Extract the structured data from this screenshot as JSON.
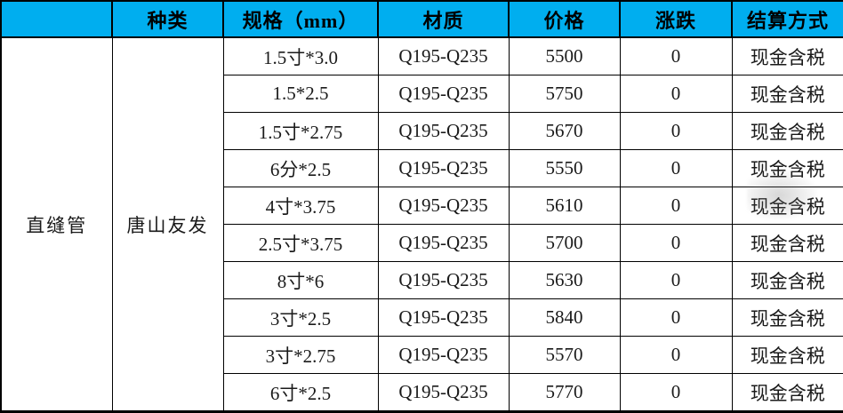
{
  "header": {
    "blank": "",
    "type": "种类",
    "spec": "规格（mm）",
    "material": "材质",
    "price": "价格",
    "change": "涨跌",
    "settlement": "结算方式"
  },
  "category": "直缝管",
  "brand": "唐山友发",
  "rows": [
    {
      "spec": "1.5寸*3.0",
      "material": "Q195-Q235",
      "price": "5500",
      "change": "0",
      "settlement": "现金含税"
    },
    {
      "spec": "1.5*2.5",
      "material": "Q195-Q235",
      "price": "5750",
      "change": "0",
      "settlement": "现金含税"
    },
    {
      "spec": "1.5寸*2.75",
      "material": "Q195-Q235",
      "price": "5670",
      "change": "0",
      "settlement": "现金含税"
    },
    {
      "spec": "6分*2.5",
      "material": "Q195-Q235",
      "price": "5550",
      "change": "0",
      "settlement": "现金含税"
    },
    {
      "spec": "4寸*3.75",
      "material": "Q195-Q235",
      "price": "5610",
      "change": "0",
      "settlement": "现金含税"
    },
    {
      "spec": "2.5寸*3.75",
      "material": "Q195-Q235",
      "price": "5700",
      "change": "0",
      "settlement": "现金含税"
    },
    {
      "spec": "8寸*6",
      "material": "Q195-Q235",
      "price": "5630",
      "change": "0",
      "settlement": "现金含税"
    },
    {
      "spec": "3寸*2.5",
      "material": "Q195-Q235",
      "price": "5840",
      "change": "0",
      "settlement": "现金含税"
    },
    {
      "spec": "3寸*2.75",
      "material": "Q195-Q235",
      "price": "5570",
      "change": "0",
      "settlement": "现金含税"
    },
    {
      "spec": "6寸*2.5",
      "material": "Q195-Q235",
      "price": "5770",
      "change": "0",
      "settlement": "现金含税"
    }
  ],
  "colors": {
    "header_bg": "#00AEEF",
    "border": "#000000",
    "body_bg": "#FFFFFF",
    "text": "#000000"
  }
}
